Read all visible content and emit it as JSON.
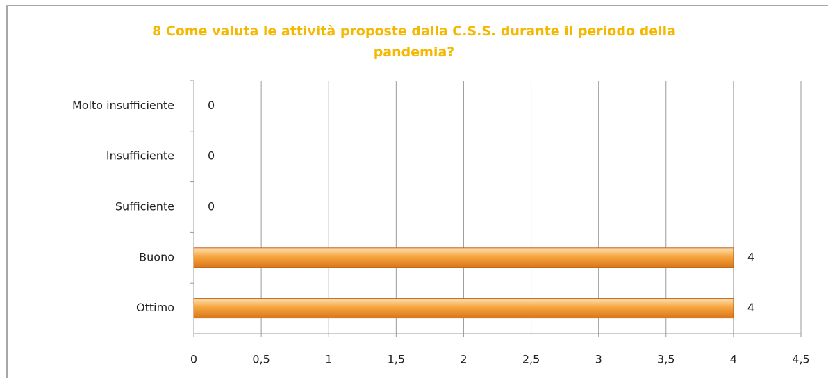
{
  "chart_data": {
    "type": "bar",
    "orientation": "horizontal",
    "title": "8 Come valuta le attività proposte dalla C.S.S. durante il periodo della pandemia?",
    "categories": [
      "Molto insufficiente",
      "Insufficiente",
      "Sufficiente",
      "Buono",
      "Ottimo"
    ],
    "values": [
      0,
      0,
      0,
      4,
      4
    ],
    "color": "#f39a2e",
    "xlim": [
      0,
      4.5
    ],
    "xticks": [
      0,
      {
        "value": 0.5,
        "label": "0,5"
      },
      1,
      {
        "value": 1.5,
        "label": "1,5"
      },
      2,
      {
        "value": 2.5,
        "label": "2,5"
      },
      3,
      {
        "value": 3.5,
        "label": "3,5"
      },
      4,
      {
        "value": 4.5,
        "label": "4,5"
      }
    ],
    "grid": true
  }
}
